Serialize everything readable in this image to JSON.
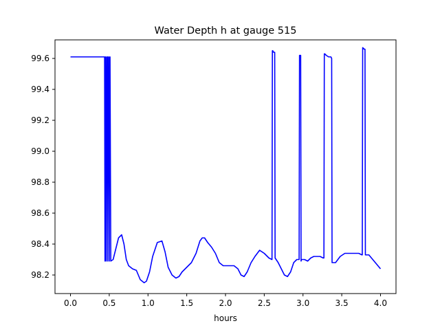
{
  "chart_data": {
    "type": "line",
    "title": "Water Depth h at gauge 515",
    "xlabel": "hours",
    "ylabel": "",
    "xlim": [
      -0.2,
      4.2
    ],
    "ylim": [
      98.08,
      99.72
    ],
    "xticks": [
      0.0,
      0.5,
      1.0,
      1.5,
      2.0,
      2.5,
      3.0,
      3.5,
      4.0
    ],
    "xtick_labels": [
      "0.0",
      "0.5",
      "1.0",
      "1.5",
      "2.0",
      "2.5",
      "3.0",
      "3.5",
      "4.0"
    ],
    "yticks": [
      98.2,
      98.4,
      98.6,
      98.8,
      99.0,
      99.2,
      99.4,
      99.6
    ],
    "ytick_labels": [
      "98.2",
      "98.4",
      "98.6",
      "98.8",
      "99.0",
      "99.2",
      "99.4",
      "99.6"
    ],
    "grid": false,
    "series": [
      {
        "color": "#0000ff",
        "x": [
          0.0,
          0.44,
          0.445,
          0.45,
          0.455,
          0.46,
          0.47,
          0.475,
          0.48,
          0.485,
          0.49,
          0.5,
          0.505,
          0.51,
          0.52,
          0.55,
          0.58,
          0.62,
          0.66,
          0.69,
          0.72,
          0.75,
          0.8,
          0.85,
          0.9,
          0.95,
          0.98,
          1.02,
          1.06,
          1.12,
          1.18,
          1.22,
          1.26,
          1.31,
          1.36,
          1.4,
          1.44,
          1.5,
          1.56,
          1.62,
          1.67,
          1.7,
          1.73,
          1.77,
          1.82,
          1.87,
          1.92,
          1.97,
          2.01,
          2.06,
          2.11,
          2.16,
          2.2,
          2.24,
          2.28,
          2.33,
          2.38,
          2.44,
          2.5,
          2.56,
          2.6,
          2.605,
          2.61,
          2.62,
          2.63,
          2.635,
          2.64,
          2.68,
          2.72,
          2.76,
          2.8,
          2.84,
          2.88,
          2.92,
          2.95,
          2.955,
          2.96,
          2.97,
          2.975,
          2.98,
          3.02,
          3.06,
          3.1,
          3.14,
          3.18,
          3.22,
          3.26,
          3.27,
          3.275,
          3.28,
          3.3,
          3.33,
          3.36,
          3.37,
          3.375,
          3.38,
          3.42,
          3.48,
          3.54,
          3.6,
          3.66,
          3.72,
          3.76,
          3.765,
          3.77,
          3.79,
          3.8,
          3.805,
          3.81,
          3.85,
          3.9,
          3.95,
          4.0
        ],
        "values": [
          99.61,
          99.61,
          98.29,
          99.61,
          99.61,
          98.29,
          99.61,
          99.61,
          98.29,
          99.61,
          99.61,
          98.29,
          99.61,
          99.61,
          98.29,
          98.3,
          98.36,
          98.44,
          98.46,
          98.4,
          98.3,
          98.26,
          98.24,
          98.23,
          98.17,
          98.15,
          98.16,
          98.22,
          98.32,
          98.41,
          98.42,
          98.35,
          98.25,
          98.2,
          98.18,
          98.19,
          98.22,
          98.25,
          98.28,
          98.34,
          98.42,
          98.44,
          98.44,
          98.41,
          98.38,
          98.34,
          98.28,
          98.26,
          98.26,
          98.26,
          98.26,
          98.24,
          98.2,
          98.19,
          98.22,
          98.28,
          98.32,
          98.36,
          98.34,
          98.31,
          98.3,
          99.65,
          99.65,
          99.64,
          99.64,
          99.64,
          98.31,
          98.28,
          98.24,
          98.2,
          98.19,
          98.22,
          98.28,
          98.3,
          98.3,
          99.62,
          99.62,
          99.62,
          98.29,
          98.3,
          98.3,
          98.29,
          98.31,
          98.32,
          98.32,
          98.32,
          98.31,
          98.31,
          99.63,
          99.63,
          99.62,
          99.61,
          99.61,
          99.6,
          98.28,
          98.28,
          98.28,
          98.32,
          98.34,
          98.34,
          98.34,
          98.34,
          98.33,
          98.33,
          99.67,
          99.66,
          99.66,
          98.33,
          98.33,
          98.33,
          98.3,
          98.27,
          98.24
        ]
      }
    ]
  }
}
